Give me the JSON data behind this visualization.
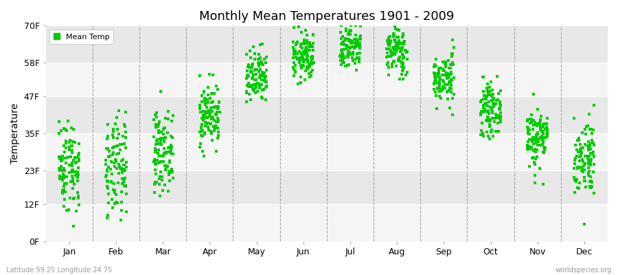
{
  "title": "Monthly Mean Temperatures 1901 - 2009",
  "ylabel": "Temperature",
  "bottom_left": "Latitude 59.25 Longitude 24.75",
  "bottom_right": "worldspecies.org",
  "yticks": [
    0,
    12,
    23,
    35,
    47,
    58,
    70
  ],
  "ytick_labels": [
    "0F",
    "12F",
    "23F",
    "35F",
    "47F",
    "58F",
    "70F"
  ],
  "months": [
    "Jan",
    "Feb",
    "Mar",
    "Apr",
    "May",
    "Jun",
    "Jul",
    "Aug",
    "Sep",
    "Oct",
    "Nov",
    "Dec"
  ],
  "dot_color": "#00cc00",
  "background_color": "#f5f5f5",
  "alt_band_color": "#e8e8e8",
  "legend_label": "Mean Temp",
  "n_years": 109,
  "seed": 42,
  "monthly_means_C": [
    -4.0,
    -5.0,
    -1.5,
    5.0,
    11.5,
    15.5,
    17.5,
    16.5,
    11.5,
    6.0,
    1.0,
    -2.5
  ],
  "monthly_stds_C": [
    4.2,
    4.5,
    3.5,
    2.8,
    2.5,
    2.2,
    2.2,
    2.2,
    2.2,
    2.2,
    2.8,
    3.5
  ]
}
